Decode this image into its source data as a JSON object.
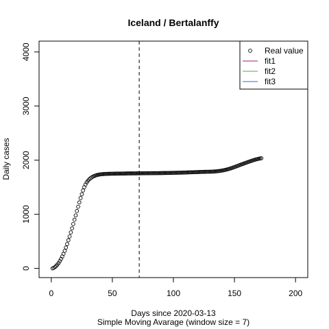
{
  "chart_data": {
    "type": "scatter",
    "title": "Iceland / Bertalanffy",
    "xlabel": "Days since 2020-03-13",
    "sublabel": "Simple Moving Avarage (window size = 7)",
    "ylabel": "Daily cases",
    "xlim": [
      -10,
      210
    ],
    "ylim": [
      -170,
      4200
    ],
    "xticks": [
      0,
      50,
      100,
      150,
      200
    ],
    "yticks": [
      0,
      1000,
      2000,
      3000,
      4000
    ],
    "vline_x": 72,
    "legend_position": "top-right",
    "legend": [
      {
        "label": "Real value",
        "kind": "point",
        "color": "#000000"
      },
      {
        "label": "fit1",
        "kind": "line",
        "color": "#9e1f6e"
      },
      {
        "label": "fit2",
        "kind": "line",
        "color": "#4caf32"
      },
      {
        "label": "fit3",
        "kind": "line",
        "color": "#2a6fd6"
      }
    ],
    "series": [
      {
        "name": "Real value",
        "x": [
          1,
          2,
          3,
          4,
          5,
          6,
          7,
          8,
          9,
          10,
          11,
          12,
          13,
          14,
          15,
          16,
          17,
          18,
          19,
          20,
          21,
          22,
          23,
          24,
          25,
          26,
          27,
          28,
          29,
          30,
          31,
          32,
          33,
          34,
          35,
          36,
          37,
          38,
          39,
          40,
          41,
          42,
          43,
          44,
          45,
          46,
          47,
          48,
          49,
          50,
          51,
          52,
          53,
          54,
          55,
          56,
          57,
          58,
          59,
          60,
          61,
          62,
          63,
          64,
          65,
          66,
          67,
          68,
          69,
          70,
          71,
          72,
          73,
          74,
          75,
          76,
          77,
          78,
          79,
          80,
          81,
          82,
          83,
          84,
          85,
          86,
          87,
          88,
          89,
          90,
          91,
          92,
          93,
          94,
          95,
          96,
          97,
          98,
          99,
          100,
          101,
          102,
          103,
          104,
          105,
          106,
          107,
          108,
          109,
          110,
          111,
          112,
          113,
          114,
          115,
          116,
          117,
          118,
          119,
          120,
          121,
          122,
          123,
          124,
          125,
          126,
          127,
          128,
          129,
          130,
          131,
          132,
          133,
          134,
          135,
          136,
          137,
          138,
          139,
          140,
          141,
          142,
          143,
          144,
          145,
          146,
          147,
          148,
          149,
          150,
          151,
          152,
          153,
          154,
          155,
          156,
          157,
          158,
          159,
          160,
          161,
          162,
          163,
          164,
          165,
          166,
          167,
          168,
          169,
          170,
          171,
          172
        ],
        "y": [
          0,
          10,
          25,
          45,
          70,
          100,
          135,
          175,
          220,
          270,
          325,
          385,
          450,
          520,
          590,
          665,
          740,
          820,
          900,
          980,
          1060,
          1140,
          1220,
          1300,
          1370,
          1440,
          1500,
          1550,
          1590,
          1620,
          1645,
          1665,
          1680,
          1695,
          1705,
          1715,
          1722,
          1728,
          1733,
          1737,
          1740,
          1742,
          1744,
          1745,
          1746,
          1747,
          1748,
          1749,
          1750,
          1750,
          1751,
          1751,
          1752,
          1752,
          1752,
          1753,
          1753,
          1753,
          1754,
          1754,
          1754,
          1755,
          1755,
          1755,
          1755,
          1756,
          1756,
          1756,
          1756,
          1757,
          1757,
          1757,
          1757,
          1758,
          1758,
          1758,
          1758,
          1759,
          1759,
          1759,
          1759,
          1760,
          1760,
          1760,
          1760,
          1761,
          1761,
          1761,
          1762,
          1762,
          1762,
          1763,
          1763,
          1763,
          1764,
          1764,
          1765,
          1765,
          1766,
          1766,
          1767,
          1767,
          1768,
          1768,
          1769,
          1770,
          1770,
          1771,
          1772,
          1772,
          1773,
          1774,
          1775,
          1776,
          1777,
          1777,
          1778,
          1779,
          1780,
          1781,
          1781,
          1782,
          1783,
          1783,
          1784,
          1785,
          1785,
          1786,
          1786,
          1787,
          1788,
          1789,
          1790,
          1792,
          1794,
          1796,
          1799,
          1802,
          1805,
          1809,
          1813,
          1818,
          1823,
          1829,
          1835,
          1842,
          1849,
          1857,
          1865,
          1873,
          1881,
          1890,
          1898,
          1907,
          1915,
          1924,
          1932,
          1941,
          1949,
          1957,
          1965,
          1973,
          1981,
          1989,
          1996,
          2003,
          2010,
          2016,
          2022,
          2027,
          2032,
          2036
        ]
      }
    ]
  }
}
